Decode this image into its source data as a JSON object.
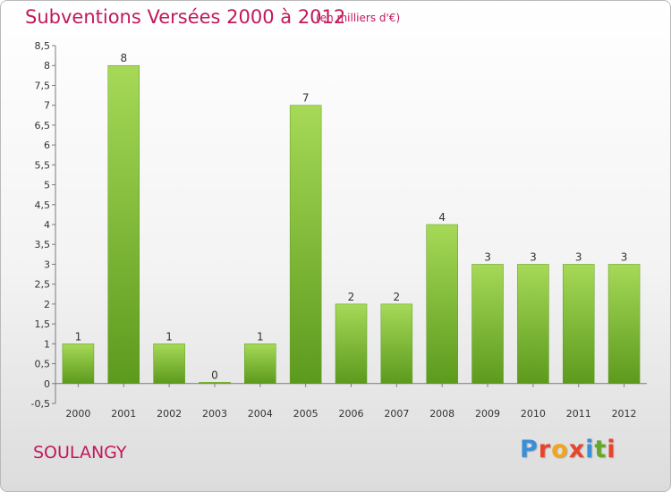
{
  "header": {
    "title": "Subventions Versées 2000 à 2012",
    "subtitle": "(en milliers d'€)"
  },
  "footer": {
    "commune": "SOULANGY",
    "logo_letters": [
      "P",
      "r",
      "o",
      "x",
      "i",
      "t",
      "i"
    ],
    "logo_colors": [
      "#3a8fd6",
      "#e8442b",
      "#f2a51c",
      "#e8442b",
      "#3a8fd6",
      "#63a82a",
      "#e8442b"
    ]
  },
  "chart_data": {
    "type": "bar",
    "title": "Subventions Versées 2000 à 2012",
    "subtitle": "(en milliers d'€)",
    "categories": [
      "2000",
      "2001",
      "2002",
      "2003",
      "2004",
      "2005",
      "2006",
      "2007",
      "2008",
      "2009",
      "2010",
      "2011",
      "2012"
    ],
    "values": [
      1,
      8,
      1,
      0,
      1,
      7,
      2,
      2,
      4,
      3,
      3,
      3,
      3
    ],
    "data_labels": [
      "1",
      "8",
      "1",
      "0",
      "1",
      "7",
      "2",
      "2",
      "4",
      "3",
      "3",
      "3",
      "3"
    ],
    "yticks": [
      "-0,5",
      "0",
      "0,5",
      "1",
      "1,5",
      "2",
      "2,5",
      "3",
      "3,5",
      "4",
      "4,5",
      "5",
      "5,5",
      "6",
      "6,5",
      "7",
      "7,5",
      "8",
      "8,5"
    ],
    "ylim": [
      -0.5,
      8.5
    ],
    "ystep": 0.5,
    "grid": false,
    "bar_color": "#7fc23a",
    "bar_color_light": "#a6d957",
    "bar_color_dark": "#5c9a1d"
  }
}
